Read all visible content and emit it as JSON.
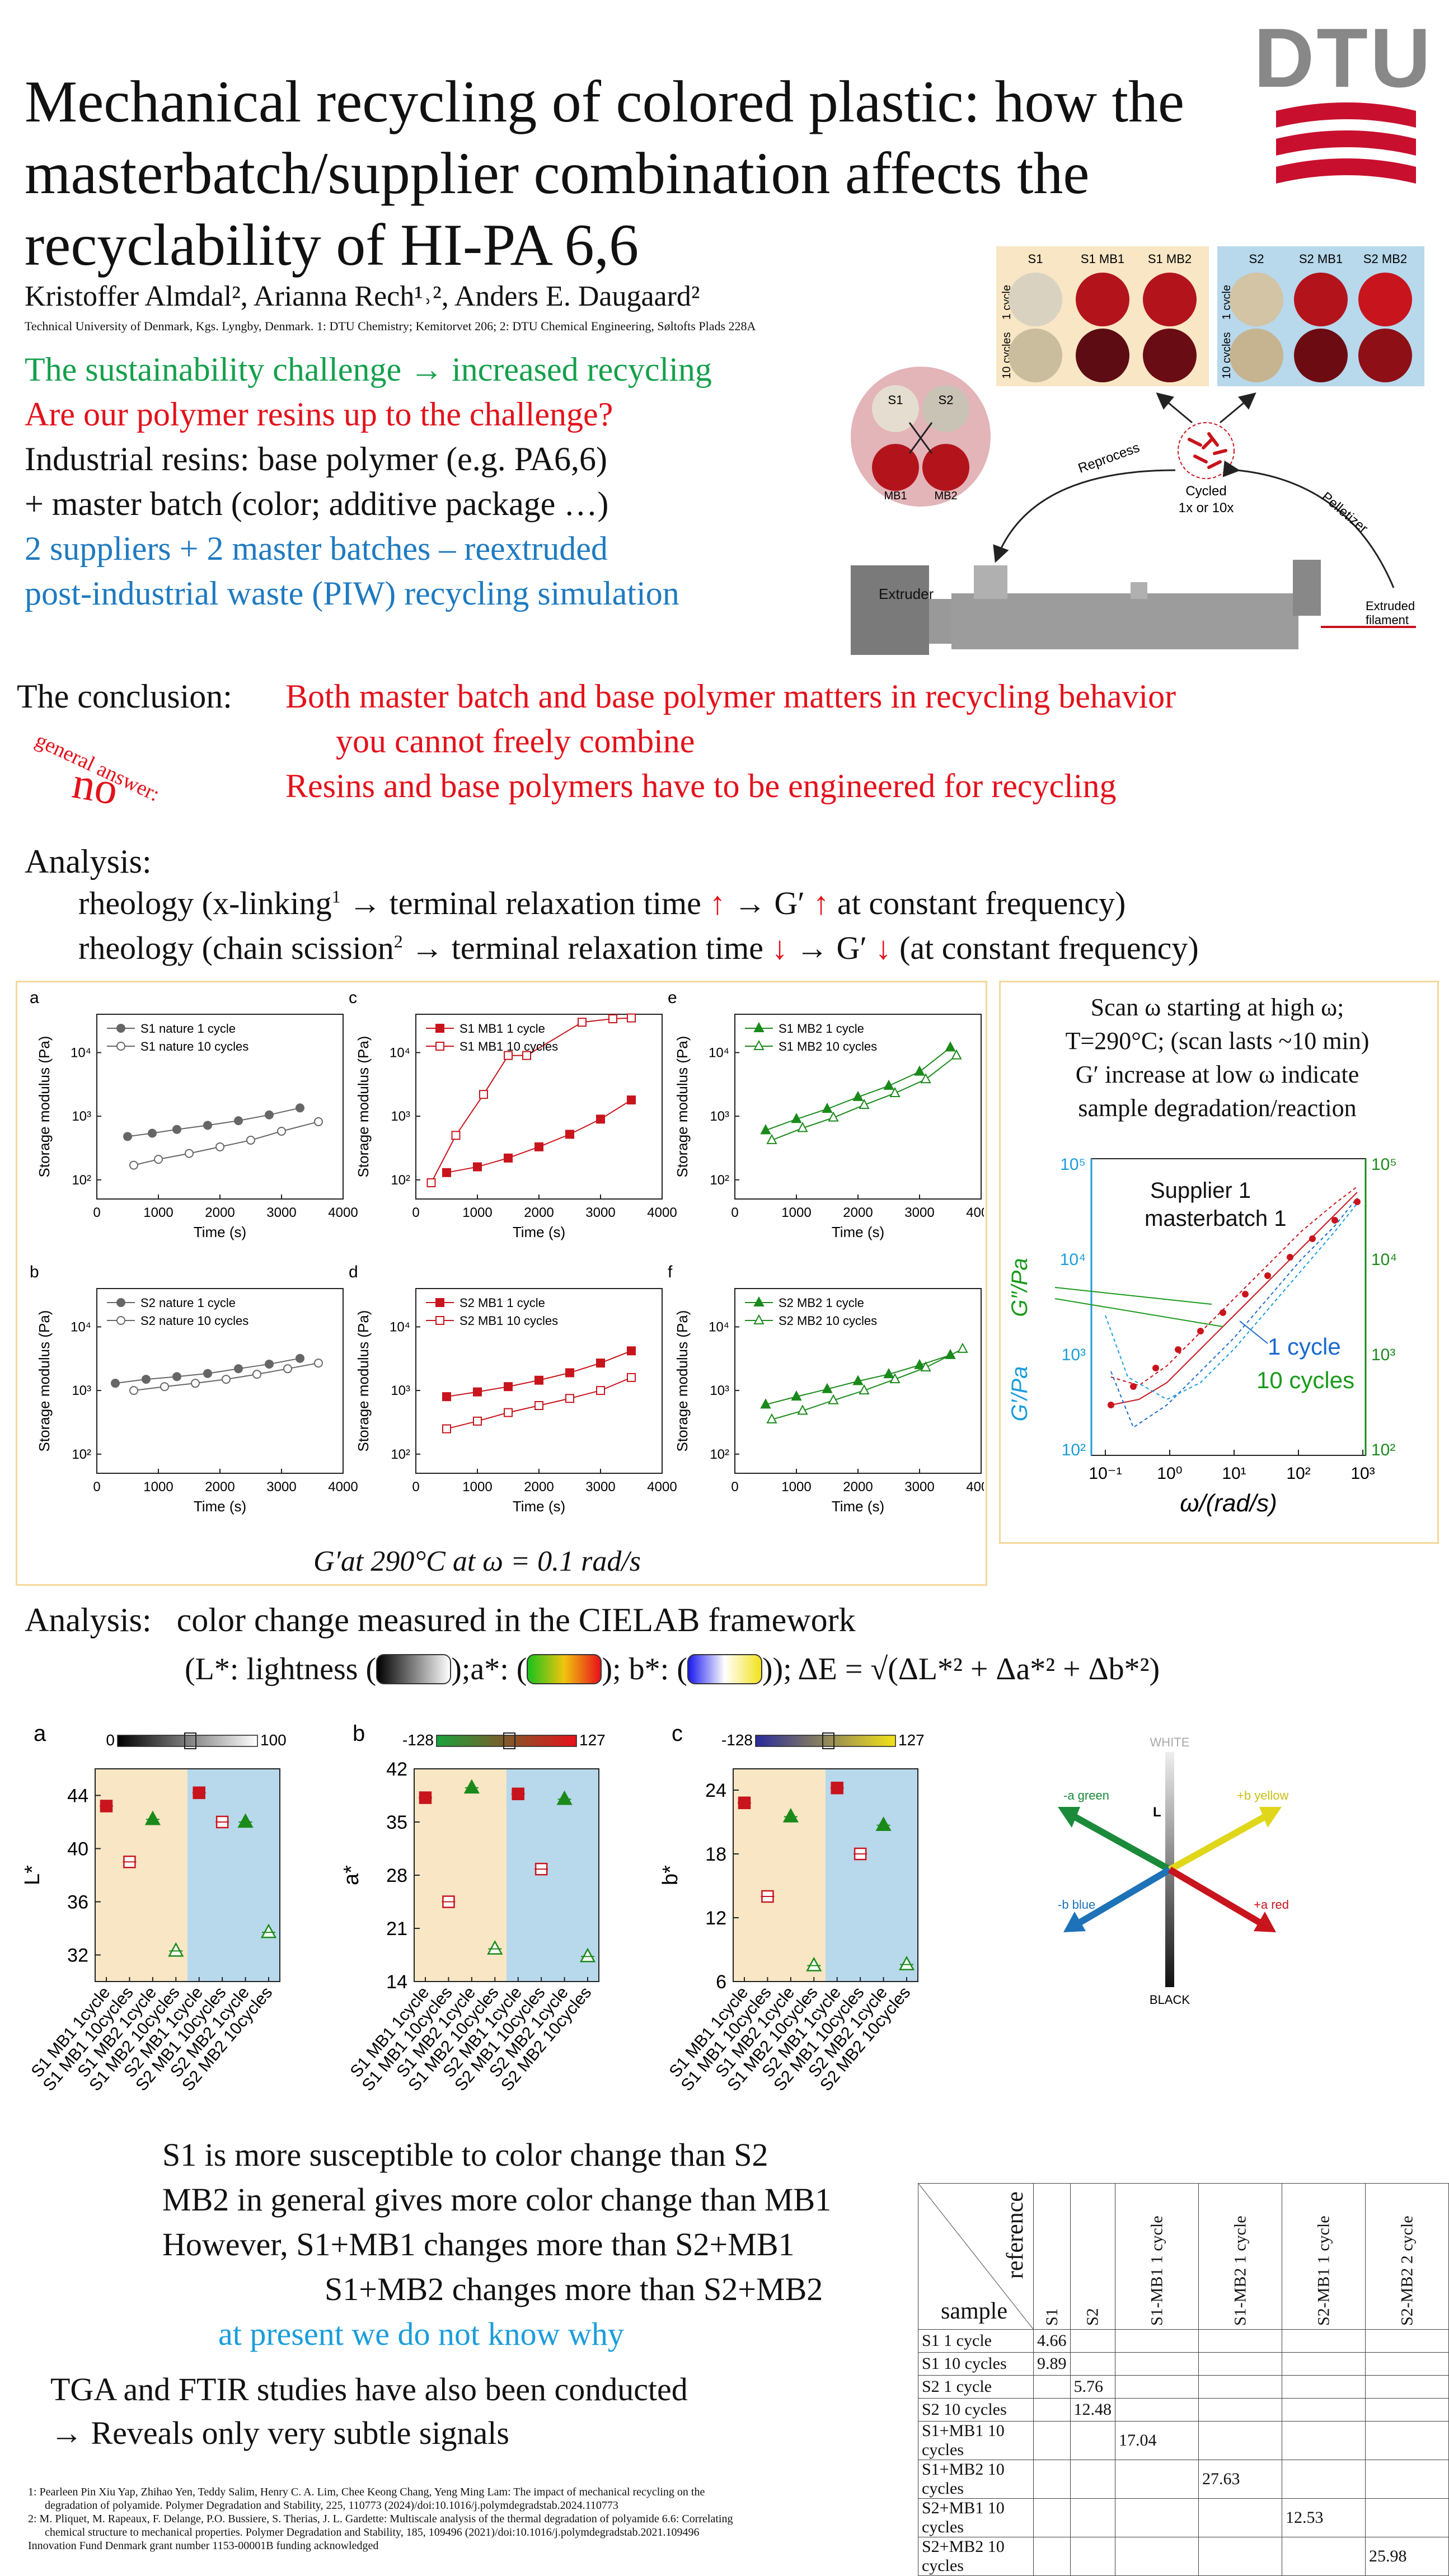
{
  "title": "Mechanical recycling of colored plastic: how the masterbatch/supplier combination affects the recyclability of HI-PA 6,6",
  "authors": "Kristoffer Almdal², Arianna Rech¹˒², Anders E. Daugaard²",
  "affiliation": "Technical University of Denmark, Kgs. Lyngby, Denmark. 1: DTU Chemistry; Kemitorvet 206; 2: DTU Chemical Engineering, Søltofts Plads 228A",
  "logo_text": "DTU",
  "intro": {
    "line1": "The sustainability challenge → increased recycling",
    "line2": "Are our polymer resins up to the challenge?",
    "line3": "Industrial resins: base polymer (e.g. PA6,6)",
    "line4": "+ master batch (color; additive package …)",
    "line5": "2 suppliers + 2 master batches – reextruded",
    "line6": "post-industrial waste (PIW) recycling simulation"
  },
  "process": {
    "s1": "S1",
    "s2": "S2",
    "mb1": "MB1",
    "mb2": "MB2",
    "reprocess": "Reprocess",
    "pelletizer": "Pelletizer",
    "cycled": "Cycled",
    "cycled2": "1x or 10x",
    "extruder": "Extruder",
    "extruded": "Extruded",
    "filament": "filament",
    "grid1_cols": [
      "S1",
      "S1 MB1",
      "S1 MB2"
    ],
    "grid2_cols": [
      "S2",
      "S2 MB1",
      "S2 MB2"
    ],
    "row1": "1 cycle",
    "row2": "10 cycles"
  },
  "conclusion": {
    "label": "The conclusion:",
    "line1": "Both master batch and base polymer matters in recycling behavior",
    "line2": "you cannot freely combine",
    "line3": "Resins and base polymers have to be engineered for recycling",
    "general": "general answer:",
    "no": "no"
  },
  "analysis1": {
    "head": "Analysis:",
    "l1a": "rheology (x-linking",
    "l1sup": "1",
    "l1b": " → terminal relaxation time ",
    "l1arrow": "↑",
    "l1c": " → G′ ",
    "l1arrow2": "↑",
    "l1d": " at constant frequency)",
    "l2a": "rheology (chain scission",
    "l2sup": "2",
    "l2b": " → terminal relaxation time ",
    "l2arrow": "↓",
    "l2c": " → G′ ",
    "l2arrow2": "↓",
    "l2d": " (at constant frequency)"
  },
  "gprime_caption": "G′at 290°C at ω = 0.1 rad/s",
  "scan_text": {
    "l1": "Scan ω starting at high ω;",
    "l2": "T=290°C; (scan lasts ~10 min)",
    "l3": "G′ increase at low ω indicate",
    "l4": "sample degradation/reaction",
    "supplier": "Supplier 1",
    "mb": "masterbatch 1",
    "one": "1 cycle",
    "ten": "10 cycles",
    "g2": "G″/Pa",
    "g1": "G′/Pa",
    "xlabel": "ω/(rad/s)"
  },
  "small_plot_common": {
    "xlabel": "Time (s)",
    "ylabel": "Storage modulus (Pa)",
    "xticks": [
      "0",
      "1000",
      "2000",
      "3000",
      "4000"
    ],
    "yticks": [
      "10²",
      "10³",
      "10⁴"
    ]
  },
  "chart_data": [
    {
      "type": "scatter",
      "panel": "a",
      "ylog": true,
      "xlim": [
        0,
        4000
      ],
      "ylim": [
        50,
        40000
      ],
      "series": [
        {
          "name": "S1 nature 1 cycle",
          "x": [
            500,
            900,
            1300,
            1800,
            2300,
            2800,
            3300
          ],
          "values": [
            480,
            540,
            620,
            720,
            850,
            1050,
            1350
          ]
        },
        {
          "name": "S1 nature 10 cycles",
          "x": [
            600,
            1000,
            1500,
            2000,
            2500,
            3000,
            3600
          ],
          "values": [
            170,
            210,
            260,
            330,
            420,
            580,
            820
          ]
        }
      ]
    },
    {
      "type": "scatter",
      "panel": "c",
      "ylog": true,
      "xlim": [
        0,
        4000
      ],
      "ylim": [
        50,
        40000
      ],
      "series": [
        {
          "name": "S1 MB1 1 cycle",
          "x": [
            500,
            1000,
            1500,
            2000,
            2500,
            3000,
            3500
          ],
          "values": [
            130,
            160,
            220,
            330,
            520,
            900,
            1800
          ]
        },
        {
          "name": "S1 MB1 10 cycles",
          "x": [
            250,
            650,
            1100,
            1500,
            1800,
            2700,
            3200,
            3500
          ],
          "values": [
            90,
            500,
            2200,
            9000,
            9000,
            30000,
            34000,
            35000
          ]
        }
      ]
    },
    {
      "type": "scatter",
      "panel": "e",
      "ylog": true,
      "xlim": [
        0,
        4000
      ],
      "ylim": [
        50,
        40000
      ],
      "series": [
        {
          "name": "S1 MB2 1 cycle",
          "x": [
            500,
            1000,
            1500,
            2000,
            2500,
            3000,
            3500
          ],
          "values": [
            600,
            900,
            1300,
            2000,
            3000,
            5000,
            12000
          ]
        },
        {
          "name": "S1 MB2 10 cycles",
          "x": [
            600,
            1100,
            1600,
            2100,
            2600,
            3100,
            3600
          ],
          "values": [
            420,
            650,
            950,
            1500,
            2300,
            3800,
            9000
          ]
        }
      ]
    },
    {
      "type": "scatter",
      "panel": "b",
      "ylog": true,
      "xlim": [
        0,
        4000
      ],
      "ylim": [
        50,
        40000
      ],
      "series": [
        {
          "name": "S2 nature 1 cycle",
          "x": [
            300,
            800,
            1300,
            1800,
            2300,
            2800,
            3300
          ],
          "values": [
            1300,
            1500,
            1650,
            1850,
            2200,
            2600,
            3200
          ]
        },
        {
          "name": "S2 nature 10 cycles",
          "x": [
            600,
            1100,
            1600,
            2100,
            2600,
            3100,
            3600
          ],
          "values": [
            1000,
            1150,
            1300,
            1500,
            1800,
            2200,
            2700
          ]
        }
      ]
    },
    {
      "type": "scatter",
      "panel": "d",
      "ylog": true,
      "xlim": [
        0,
        4000
      ],
      "ylim": [
        50,
        40000
      ],
      "series": [
        {
          "name": "S2 MB1 1 cycle",
          "x": [
            500,
            1000,
            1500,
            2000,
            2500,
            3000,
            3500
          ],
          "values": [
            800,
            950,
            1150,
            1450,
            1900,
            2700,
            4200
          ]
        },
        {
          "name": "S2 MB1 10 cycles",
          "x": [
            500,
            1000,
            1500,
            2000,
            2500,
            3000,
            3500
          ],
          "values": [
            250,
            330,
            450,
            580,
            750,
            1000,
            1600
          ]
        }
      ]
    },
    {
      "type": "scatter",
      "panel": "f",
      "ylog": true,
      "xlim": [
        0,
        4000
      ],
      "ylim": [
        50,
        40000
      ],
      "series": [
        {
          "name": "S2 MB2 1 cycle",
          "x": [
            500,
            1000,
            1500,
            2000,
            2500,
            3000,
            3500
          ],
          "values": [
            600,
            800,
            1050,
            1400,
            1800,
            2500,
            3600
          ]
        },
        {
          "name": "S2 MB2 10 cycles",
          "x": [
            600,
            1100,
            1600,
            2100,
            2600,
            3100,
            3700
          ],
          "values": [
            350,
            480,
            700,
            1000,
            1500,
            2300,
            4500
          ]
        }
      ]
    },
    {
      "type": "scatter",
      "panel": "a-lab",
      "ylabel": "L*",
      "ylim": [
        30,
        46
      ],
      "yticks": [
        32,
        36,
        40,
        44
      ],
      "categories": [
        "S1 MB1 1cycle",
        "S1 MB1 10cycles",
        "S1 MB2 1cycle",
        "S1 MB2 10cycles",
        "S2 MB1 1cycle",
        "S2 MB1 10cycles",
        "S2 MB2 1cycle",
        "S2 MB2 10cycles"
      ],
      "values": [
        43.2,
        39.0,
        42.2,
        32.3,
        44.2,
        42.0,
        42.0,
        33.7
      ],
      "colorbar": [
        "0",
        "100"
      ]
    },
    {
      "type": "scatter",
      "panel": "b-lab",
      "ylabel": "a*",
      "ylim": [
        14,
        42
      ],
      "yticks": [
        14,
        21,
        28,
        35,
        42
      ],
      "categories": [
        "S1 MB1 1cycle",
        "S1 MB1 10cycles",
        "S1 MB2 1cycle",
        "S1 MB2 10cycles",
        "S2 MB1 1cycle",
        "S2 MB1 10cycles",
        "S2 MB2 1cycle",
        "S2 MB2 10cycles"
      ],
      "values": [
        38.2,
        24.5,
        39.5,
        18.3,
        38.7,
        28.8,
        38.0,
        17.3
      ],
      "colorbar": [
        "-128",
        "127"
      ]
    },
    {
      "type": "scatter",
      "panel": "c-lab",
      "ylabel": "b*",
      "ylim": [
        6,
        26
      ],
      "yticks": [
        6,
        12,
        18,
        24
      ],
      "categories": [
        "S1 MB1 1cycle",
        "S1 MB1 10cycles",
        "S1 MB2 1cycle",
        "S1 MB2 10cycles",
        "S2 MB1 1cycle",
        "S2 MB1 10cycles",
        "S2 MB2 1cycle",
        "S2 MB2 10cycles"
      ],
      "values": [
        22.8,
        14.0,
        21.5,
        7.5,
        24.2,
        18.0,
        20.7,
        7.6
      ],
      "colorbar": [
        "-128",
        "127"
      ]
    },
    {
      "type": "table",
      "panel": "delta-e",
      "columns": [
        "S1",
        "S2",
        "S1-MB1 1 cycle",
        "S1-MB2 1 cycle",
        "S2-MB1 1 cycle",
        "S2-MB2 2 cycle"
      ],
      "rows": [
        [
          "S1 1 cycle",
          "4.66",
          "",
          "",
          "",
          "",
          ""
        ],
        [
          "S1 10 cycles",
          "9.89",
          "",
          "",
          "",
          "",
          ""
        ],
        [
          "S2 1 cycle",
          "",
          "5.76",
          "",
          "",
          "",
          ""
        ],
        [
          "S2 10 cycles",
          "",
          "12.48",
          "",
          "",
          "",
          ""
        ],
        [
          "S1+MB1 10 cycles",
          "",
          "",
          "17.04",
          "",
          "",
          ""
        ],
        [
          "S1+MB2 10 cycles",
          "",
          "",
          "",
          "27.63",
          "",
          ""
        ],
        [
          "S2+MB1 10 cycles",
          "",
          "",
          "",
          "",
          "12.53",
          ""
        ],
        [
          "S2+MB2 10 cycles",
          "",
          "",
          "",
          "",
          "",
          "25.98"
        ]
      ]
    }
  ],
  "panel_letters": [
    "a",
    "c",
    "e",
    "b",
    "d",
    "f"
  ],
  "analysis2": {
    "head": "Analysis:",
    "text": "color change measured in the CIELAB framework",
    "l2a": "(L*: lightness (",
    "l2b": ");a*: (",
    "l2c": "); b*: (",
    "l2d": ")); ΔE = √(ΔL*² + Δa*² + Δb*²)"
  },
  "lab_letters": [
    "a",
    "b",
    "c"
  ],
  "cielab": {
    "white": "WHITE",
    "black": "BLACK",
    "L": "L",
    "agreen": "-a green",
    "byellow": "+b yellow",
    "bblue": "-b blue",
    "ared": "+a red"
  },
  "findings": {
    "l1": "S1 is more susceptible to color change than S2",
    "l2": "MB2 in general gives more color change than MB1",
    "l3": "However,   S1+MB1 changes more than S2+MB1",
    "l4": "S1+MB2 changes more than S2+MB2",
    "l5": "at present we do not know why"
  },
  "table": {
    "reference": "reference",
    "sample": "sample"
  },
  "tga": {
    "l1": "TGA and FTIR studies have also been conducted",
    "l2": "→ Reveals only very subtle signals"
  },
  "refs": {
    "r1a": "1: Pearleen Pin Xiu Yap, Zhihao Yen, Teddy Salim, Henry C. A. Lim, Chee Keong Chang, Yeng Ming Lam: The impact of mechanical recycling on the",
    "r1b": "degradation of polyamide. Polymer Degradation and Stability, 225, 110773 (2024)/doi:10.1016/j.polymdegradstab.2024.110773",
    "r2a": "2: M. Pliquet, M. Rapeaux, F. Delange, P.O. Bussiere, S. Therias, J. L. Gardette: Multiscale analysis of the thermal degradation of polyamide 6.6: Correlating",
    "r2b": "chemical structure to mechanical properties. Polymer Degradation and Stability, 185, 109496 (2021)/doi:10.1016/j.polymdegradstab.2021.109496",
    "r3": "Innovation Fund Denmark grant number 1153-00001B funding acknowledged"
  },
  "colors": {
    "green": "#14a04c",
    "red": "#e3111b",
    "blue": "#1e7ac0",
    "lightblue": "#1a9ddb",
    "s1bg": "#f8e6c4",
    "s2bg": "#b8d8ec",
    "dtured": "#c8102e"
  }
}
